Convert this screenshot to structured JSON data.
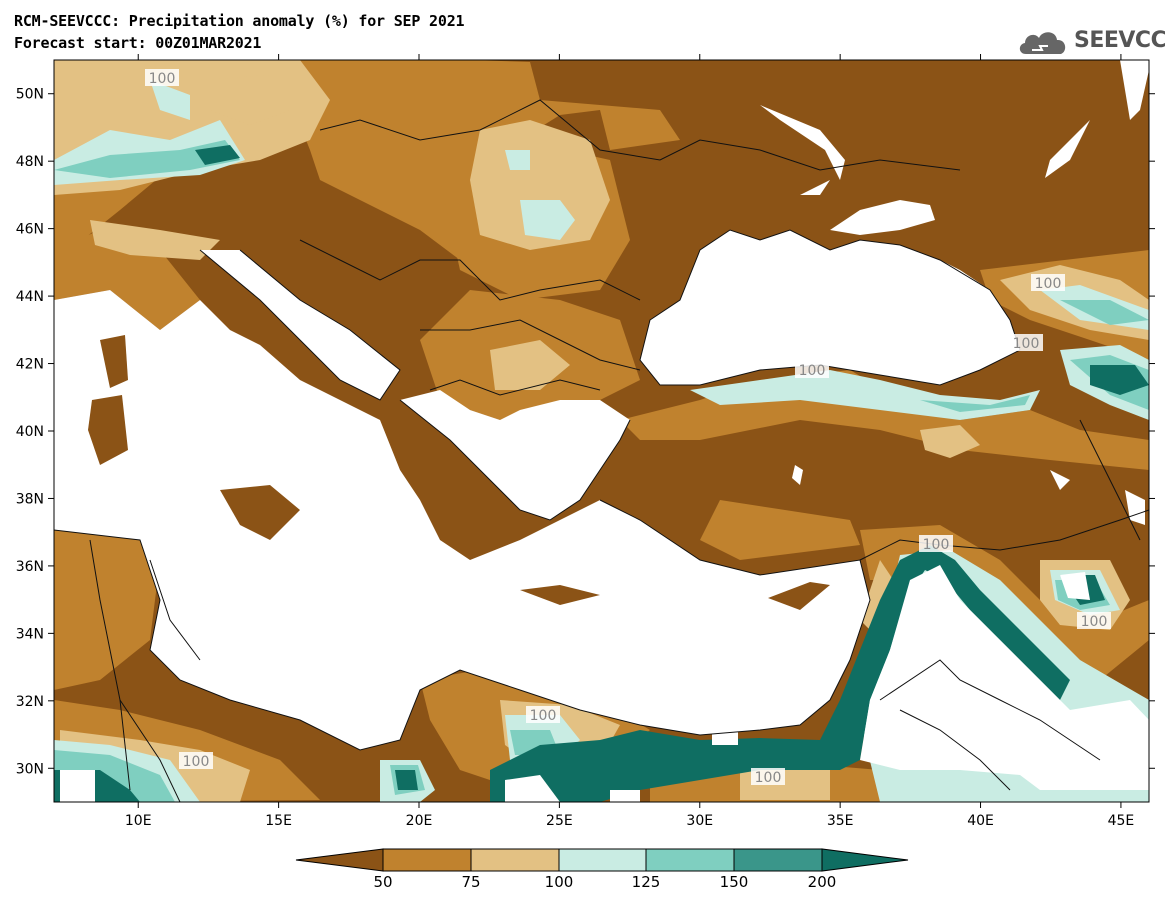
{
  "header": {
    "title_line1": "RCM-SEEVCCC: Precipitation anomaly (%) for SEP 2021",
    "title_line2": "Forecast start: 00Z01MAR2021"
  },
  "logo": {
    "text": "SEEVCCC",
    "icon": "cloud-icon"
  },
  "map": {
    "lon_range": [
      7,
      46
    ],
    "lat_range": [
      29,
      51
    ],
    "lat_ticks": [
      "50N",
      "48N",
      "46N",
      "44N",
      "42N",
      "40N",
      "38N",
      "36N",
      "34N",
      "32N",
      "30N"
    ],
    "lon_ticks": [
      "10E",
      "15E",
      "20E",
      "25E",
      "30E",
      "35E",
      "40E",
      "45E"
    ],
    "contour_labels": [
      "100",
      "100",
      "100",
      "100",
      "100",
      "100",
      "100",
      "100",
      "100"
    ]
  },
  "colorbar": {
    "labels": [
      "50",
      "75",
      "100",
      "125",
      "150",
      "200"
    ],
    "colors": [
      "#8b5316",
      "#c0822e",
      "#e3c183",
      "#c9ece3",
      "#7fcfc0",
      "#3a968a",
      "#0f6e62"
    ]
  }
}
